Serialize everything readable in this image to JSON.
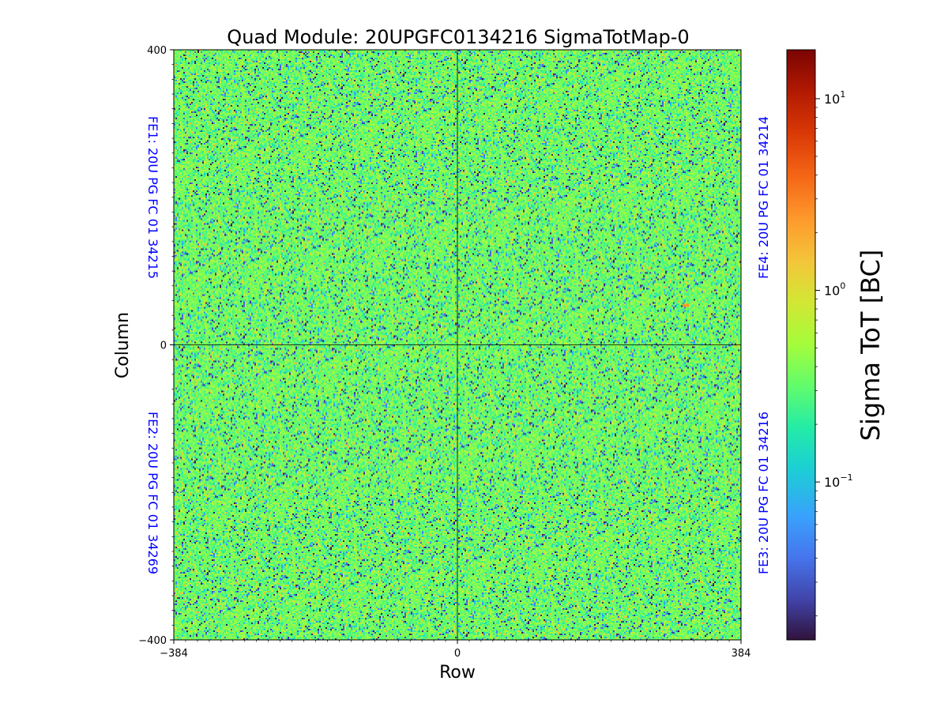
{
  "chart_data": {
    "type": "heatmap",
    "title": "Quad Module: 20UPGFC0134216 SigmaTotMap-0",
    "xlabel": "Row",
    "ylabel": "Column",
    "xlim": [
      -384,
      384
    ],
    "ylim": [
      -400,
      400
    ],
    "x_ticks": [
      {
        "value": -384,
        "label": "−384"
      },
      {
        "value": 0,
        "label": "0"
      },
      {
        "value": 384,
        "label": "384"
      }
    ],
    "y_ticks": [
      {
        "value": 400,
        "label": "400"
      },
      {
        "value": 0,
        "label": "0"
      },
      {
        "value": -400,
        "label": "−400"
      }
    ],
    "colorbar": {
      "label": "Sigma ToT [BC]",
      "scale": "log",
      "range": [
        0.015,
        18
      ],
      "colormap": "turbo",
      "ticks": [
        {
          "value": 10,
          "base": "10",
          "exp": "1"
        },
        {
          "value": 1,
          "base": "10",
          "exp": "0"
        },
        {
          "value": 0.1,
          "base": "10",
          "exp": "−1"
        }
      ]
    },
    "quadrant_labels": {
      "fe1": "FE1: 20U PG FC 01 34215",
      "fe2": "FE2: 20U PG FC 01 34269",
      "fe3": "FE3: 20U PG FC 01 34216",
      "fe4": "FE4: 20U PG FC 01 34214"
    },
    "typical_value": 0.35,
    "hotspot": {
      "x": 310,
      "y": 53,
      "value": 2.5
    }
  }
}
